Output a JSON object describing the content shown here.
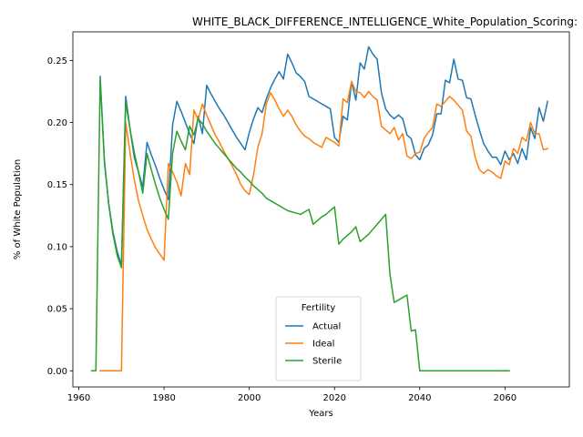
{
  "chart_data": {
    "type": "line",
    "title": "WHITE_BLACK_DIFFERENCE_INTELLIGENCE_White_Population_Scoring:",
    "xlabel": "Years",
    "ylabel": "% of White Population",
    "xlim": [
      1958.6,
      2075.1
    ],
    "ylim": [
      -0.013,
      0.273
    ],
    "xticks": [
      1960,
      1980,
      2000,
      2020,
      2040,
      2060
    ],
    "xtick_labels": [
      "1960",
      "1980",
      "2000",
      "2020",
      "2040",
      "2060"
    ],
    "yticks": [
      0.0,
      0.05,
      0.1,
      0.15,
      0.2,
      0.25
    ],
    "ytick_labels": [
      "0.00",
      "0.05",
      "0.10",
      "0.15",
      "0.20",
      "0.25"
    ],
    "grid": false,
    "legend": {
      "title": "Fertility",
      "position": "lower-center"
    },
    "series": [
      {
        "name": "Actual",
        "color": "#1f77b4",
        "x": [
          1965,
          1966,
          1967,
          1968,
          1969,
          1970,
          1971,
          1972,
          1973,
          1974,
          1975,
          1976,
          1977,
          1978,
          1979,
          1980,
          1981,
          1982,
          1983,
          1984,
          1985,
          1986,
          1987,
          1988,
          1989,
          1990,
          1991,
          1992,
          1993,
          1994,
          1995,
          1996,
          1997,
          1998,
          1999,
          2000,
          2001,
          2002,
          2003,
          2004,
          2005,
          2006,
          2007,
          2008,
          2009,
          2010,
          2011,
          2012,
          2013,
          2014,
          2015,
          2016,
          2017,
          2018,
          2019,
          2020,
          2021,
          2022,
          2023,
          2024,
          2025,
          2026,
          2027,
          2028,
          2029,
          2030,
          2031,
          2032,
          2033,
          2034,
          2035,
          2036,
          2037,
          2038,
          2039,
          2040,
          2041,
          2042,
          2043,
          2044,
          2045,
          2046,
          2047,
          2048,
          2049,
          2050,
          2051,
          2052,
          2053,
          2054,
          2055,
          2056,
          2057,
          2058,
          2059,
          2060,
          2061,
          2062,
          2063,
          2064,
          2065,
          2066,
          2067,
          2068,
          2069,
          2070
        ],
        "y": [
          0.237,
          0.168,
          0.135,
          0.112,
          0.096,
          0.085,
          0.221,
          0.195,
          0.172,
          0.16,
          0.148,
          0.184,
          0.174,
          0.165,
          0.155,
          0.146,
          0.138,
          0.198,
          0.217,
          0.209,
          0.2,
          0.191,
          0.183,
          0.205,
          0.191,
          0.23,
          0.223,
          0.217,
          0.211,
          0.206,
          0.2,
          0.194,
          0.188,
          0.183,
          0.178,
          0.192,
          0.203,
          0.212,
          0.208,
          0.219,
          0.228,
          0.235,
          0.241,
          0.235,
          0.255,
          0.248,
          0.24,
          0.237,
          0.233,
          0.221,
          0.219,
          0.217,
          0.215,
          0.213,
          0.211,
          0.188,
          0.184,
          0.205,
          0.202,
          0.233,
          0.218,
          0.248,
          0.243,
          0.261,
          0.255,
          0.251,
          0.224,
          0.211,
          0.206,
          0.203,
          0.206,
          0.203,
          0.19,
          0.187,
          0.174,
          0.17,
          0.179,
          0.182,
          0.19,
          0.207,
          0.207,
          0.234,
          0.232,
          0.251,
          0.235,
          0.234,
          0.22,
          0.219,
          0.206,
          0.194,
          0.183,
          0.177,
          0.172,
          0.172,
          0.166,
          0.177,
          0.17,
          0.175,
          0.167,
          0.179,
          0.17,
          0.196,
          0.187,
          0.212,
          0.201,
          0.217
        ]
      },
      {
        "name": "Ideal",
        "color": "#ff7f0e",
        "x": [
          1965,
          1966,
          1967,
          1968,
          1969,
          1970,
          1971,
          1972,
          1973,
          1974,
          1975,
          1976,
          1977,
          1978,
          1979,
          1980,
          1981,
          1982,
          1983,
          1984,
          1985,
          1986,
          1987,
          1988,
          1989,
          1990,
          1991,
          1992,
          1993,
          1994,
          1995,
          1996,
          1997,
          1998,
          1999,
          2000,
          2001,
          2002,
          2003,
          2004,
          2005,
          2006,
          2007,
          2008,
          2009,
          2010,
          2011,
          2012,
          2013,
          2014,
          2015,
          2016,
          2017,
          2018,
          2019,
          2020,
          2021,
          2022,
          2023,
          2024,
          2025,
          2026,
          2027,
          2028,
          2029,
          2030,
          2031,
          2032,
          2033,
          2034,
          2035,
          2036,
          2037,
          2038,
          2039,
          2040,
          2041,
          2042,
          2043,
          2044,
          2045,
          2046,
          2047,
          2048,
          2049,
          2050,
          2051,
          2052,
          2053,
          2054,
          2055,
          2056,
          2057,
          2058,
          2059,
          2060,
          2061,
          2062,
          2063,
          2064,
          2065,
          2066,
          2067,
          2068,
          2069,
          2070
        ],
        "y": [
          0.0,
          0.0,
          0.0,
          0.0,
          0.0,
          0.0,
          0.2,
          0.176,
          0.154,
          0.137,
          0.125,
          0.114,
          0.106,
          0.099,
          0.094,
          0.089,
          0.167,
          0.16,
          0.152,
          0.141,
          0.167,
          0.158,
          0.21,
          0.202,
          0.215,
          0.206,
          0.198,
          0.19,
          0.184,
          0.177,
          0.171,
          0.165,
          0.158,
          0.15,
          0.145,
          0.142,
          0.158,
          0.18,
          0.191,
          0.215,
          0.224,
          0.218,
          0.211,
          0.205,
          0.21,
          0.205,
          0.198,
          0.193,
          0.189,
          0.187,
          0.184,
          0.182,
          0.18,
          0.188,
          0.186,
          0.184,
          0.181,
          0.219,
          0.216,
          0.233,
          0.225,
          0.224,
          0.22,
          0.225,
          0.221,
          0.218,
          0.197,
          0.194,
          0.191,
          0.196,
          0.186,
          0.191,
          0.173,
          0.171,
          0.175,
          0.176,
          0.187,
          0.192,
          0.196,
          0.215,
          0.213,
          0.217,
          0.221,
          0.218,
          0.214,
          0.21,
          0.193,
          0.189,
          0.172,
          0.162,
          0.159,
          0.162,
          0.16,
          0.157,
          0.155,
          0.169,
          0.166,
          0.179,
          0.175,
          0.188,
          0.185,
          0.2,
          0.191,
          0.191,
          0.178,
          0.179
        ]
      },
      {
        "name": "Sterile",
        "color": "#2ca02c",
        "x": [
          1963,
          1964,
          1965,
          1966,
          1967,
          1968,
          1969,
          1970,
          1971,
          1972,
          1973,
          1974,
          1975,
          1976,
          1977,
          1978,
          1979,
          1980,
          1981,
          1982,
          1983,
          1984,
          1985,
          1986,
          1987,
          1988,
          1989,
          1990,
          1991,
          1992,
          1993,
          1994,
          1995,
          1996,
          1997,
          1998,
          1999,
          2000,
          2001,
          2002,
          2003,
          2004,
          2005,
          2006,
          2007,
          2008,
          2009,
          2010,
          2011,
          2012,
          2013,
          2014,
          2015,
          2016,
          2017,
          2018,
          2019,
          2020,
          2021,
          2022,
          2023,
          2024,
          2025,
          2026,
          2027,
          2028,
          2029,
          2030,
          2031,
          2032,
          2033,
          2034,
          2035,
          2036,
          2037,
          2038,
          2039,
          2040,
          2041,
          2042,
          2043,
          2044,
          2045,
          2046,
          2047,
          2048,
          2049,
          2050,
          2051,
          2052,
          2053,
          2054,
          2055,
          2056,
          2057,
          2058,
          2059,
          2060,
          2061
        ],
        "y": [
          0.0,
          0.0,
          0.235,
          0.17,
          0.134,
          0.11,
          0.093,
          0.083,
          0.216,
          0.195,
          0.176,
          0.16,
          0.143,
          0.175,
          0.162,
          0.15,
          0.139,
          0.13,
          0.122,
          0.175,
          0.193,
          0.185,
          0.178,
          0.197,
          0.19,
          0.203,
          0.199,
          0.193,
          0.188,
          0.183,
          0.179,
          0.175,
          0.171,
          0.167,
          0.163,
          0.16,
          0.156,
          0.153,
          0.149,
          0.146,
          0.143,
          0.139,
          0.137,
          0.135,
          0.133,
          0.131,
          0.129,
          0.128,
          0.127,
          0.126,
          0.128,
          0.13,
          0.118,
          0.121,
          0.124,
          0.126,
          0.129,
          0.132,
          0.102,
          0.106,
          0.109,
          0.112,
          0.116,
          0.104,
          0.107,
          0.11,
          0.114,
          0.118,
          0.122,
          0.126,
          0.078,
          0.055,
          0.057,
          0.059,
          0.061,
          0.032,
          0.033,
          0.0,
          0.0,
          0.0,
          0.0,
          0.0,
          0.0,
          0.0,
          0.0,
          0.0,
          0.0,
          0.0,
          0.0,
          0.0,
          0.0,
          0.0,
          0.0,
          0.0,
          0.0,
          0.0,
          0.0,
          0.0,
          0.0
        ]
      }
    ]
  }
}
